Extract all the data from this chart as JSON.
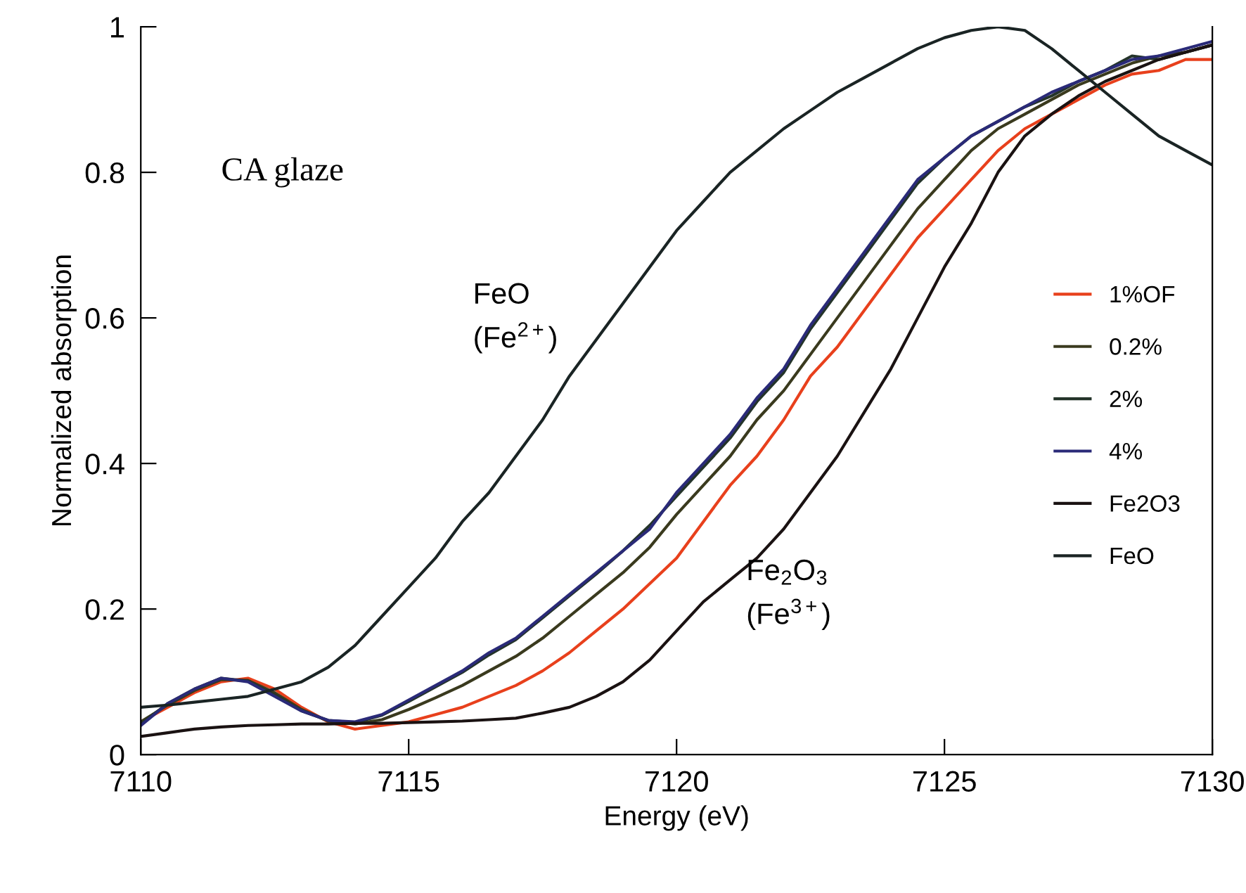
{
  "chart_data": {
    "type": "line",
    "xlabel": "Energy (eV)",
    "ylabel": "Normalized absorption",
    "annotations": [
      "CA glaze",
      "FeO\n(Fe$^{2+}$)",
      "Fe$_{2}$O$_{3}$\n(Fe$^{3+}$)"
    ],
    "x": [
      7110,
      7110.5,
      7111,
      7111.5,
      7112,
      7112.5,
      7113,
      7113.5,
      7114,
      7114.5,
      7115,
      7115.5,
      7116,
      7116.5,
      7117,
      7117.5,
      7118,
      7118.5,
      7119,
      7119.5,
      7120,
      7120.5,
      7121,
      7121.5,
      7122,
      7122.5,
      7123,
      7123.5,
      7124,
      7124.5,
      7125,
      7125.5,
      7126,
      7126.5,
      7127,
      7127.5,
      7128,
      7128.5,
      7129,
      7129.5,
      7130
    ],
    "series": [
      {
        "name": "1%OF",
        "color": "#e8401c",
        "values": [
          0.045,
          0.065,
          0.085,
          0.1,
          0.105,
          0.09,
          0.065,
          0.045,
          0.035,
          0.04,
          0.045,
          0.055,
          0.065,
          0.08,
          0.095,
          0.115,
          0.14,
          0.17,
          0.2,
          0.235,
          0.27,
          0.32,
          0.37,
          0.41,
          0.46,
          0.52,
          0.56,
          0.61,
          0.66,
          0.71,
          0.75,
          0.79,
          0.83,
          0.86,
          0.88,
          0.9,
          0.92,
          0.935,
          0.94,
          0.955,
          0.955
        ]
      },
      {
        "name": "0.2%",
        "color": "#3a3a1e",
        "values": [
          0.045,
          0.068,
          0.088,
          0.103,
          0.102,
          0.085,
          0.062,
          0.046,
          0.042,
          0.048,
          0.062,
          0.078,
          0.095,
          0.115,
          0.135,
          0.16,
          0.19,
          0.22,
          0.25,
          0.285,
          0.33,
          0.37,
          0.41,
          0.46,
          0.5,
          0.55,
          0.6,
          0.65,
          0.7,
          0.75,
          0.79,
          0.83,
          0.86,
          0.88,
          0.9,
          0.92,
          0.935,
          0.95,
          0.96,
          0.965,
          0.975
        ]
      },
      {
        "name": "2%",
        "color": "#24342a",
        "values": [
          0.042,
          0.07,
          0.09,
          0.105,
          0.101,
          0.082,
          0.06,
          0.047,
          0.044,
          0.054,
          0.073,
          0.093,
          0.113,
          0.137,
          0.158,
          0.188,
          0.218,
          0.248,
          0.28,
          0.315,
          0.355,
          0.395,
          0.435,
          0.485,
          0.525,
          0.585,
          0.635,
          0.685,
          0.735,
          0.785,
          0.82,
          0.85,
          0.87,
          0.89,
          0.905,
          0.925,
          0.94,
          0.96,
          0.955,
          0.965,
          0.975
        ]
      },
      {
        "name": "4%",
        "color": "#2a2a78",
        "values": [
          0.04,
          0.07,
          0.09,
          0.105,
          0.1,
          0.08,
          0.06,
          0.047,
          0.045,
          0.055,
          0.075,
          0.095,
          0.115,
          0.14,
          0.16,
          0.19,
          0.22,
          0.25,
          0.28,
          0.31,
          0.36,
          0.4,
          0.44,
          0.49,
          0.53,
          0.59,
          0.64,
          0.69,
          0.74,
          0.79,
          0.82,
          0.85,
          0.87,
          0.89,
          0.91,
          0.925,
          0.94,
          0.955,
          0.96,
          0.97,
          0.98
        ]
      },
      {
        "name": "Fe2O3",
        "color": "#1a1212",
        "values": [
          0.025,
          0.03,
          0.035,
          0.038,
          0.04,
          0.041,
          0.042,
          0.042,
          0.043,
          0.043,
          0.044,
          0.045,
          0.046,
          0.048,
          0.05,
          0.057,
          0.065,
          0.08,
          0.1,
          0.13,
          0.17,
          0.21,
          0.24,
          0.27,
          0.31,
          0.36,
          0.41,
          0.47,
          0.53,
          0.6,
          0.67,
          0.73,
          0.8,
          0.85,
          0.88,
          0.905,
          0.925,
          0.94,
          0.955,
          0.965,
          0.975
        ]
      },
      {
        "name": "FeO",
        "color": "#1a2424",
        "values": [
          0.065,
          0.068,
          0.072,
          0.076,
          0.08,
          0.09,
          0.1,
          0.12,
          0.15,
          0.19,
          0.23,
          0.27,
          0.32,
          0.36,
          0.41,
          0.46,
          0.52,
          0.57,
          0.62,
          0.67,
          0.72,
          0.76,
          0.8,
          0.83,
          0.86,
          0.885,
          0.91,
          0.93,
          0.95,
          0.97,
          0.985,
          0.995,
          1.0,
          0.995,
          0.97,
          0.94,
          0.91,
          0.88,
          0.85,
          0.83,
          0.81
        ]
      }
    ],
    "xlim": [
      7110,
      7130
    ],
    "xticks": [
      7110,
      7115,
      7120,
      7125,
      7130
    ],
    "ylim": [
      0,
      1
    ],
    "yticks": [
      0,
      0.2,
      0.4,
      0.6,
      0.8,
      1
    ],
    "legend": "right",
    "grid": false
  }
}
